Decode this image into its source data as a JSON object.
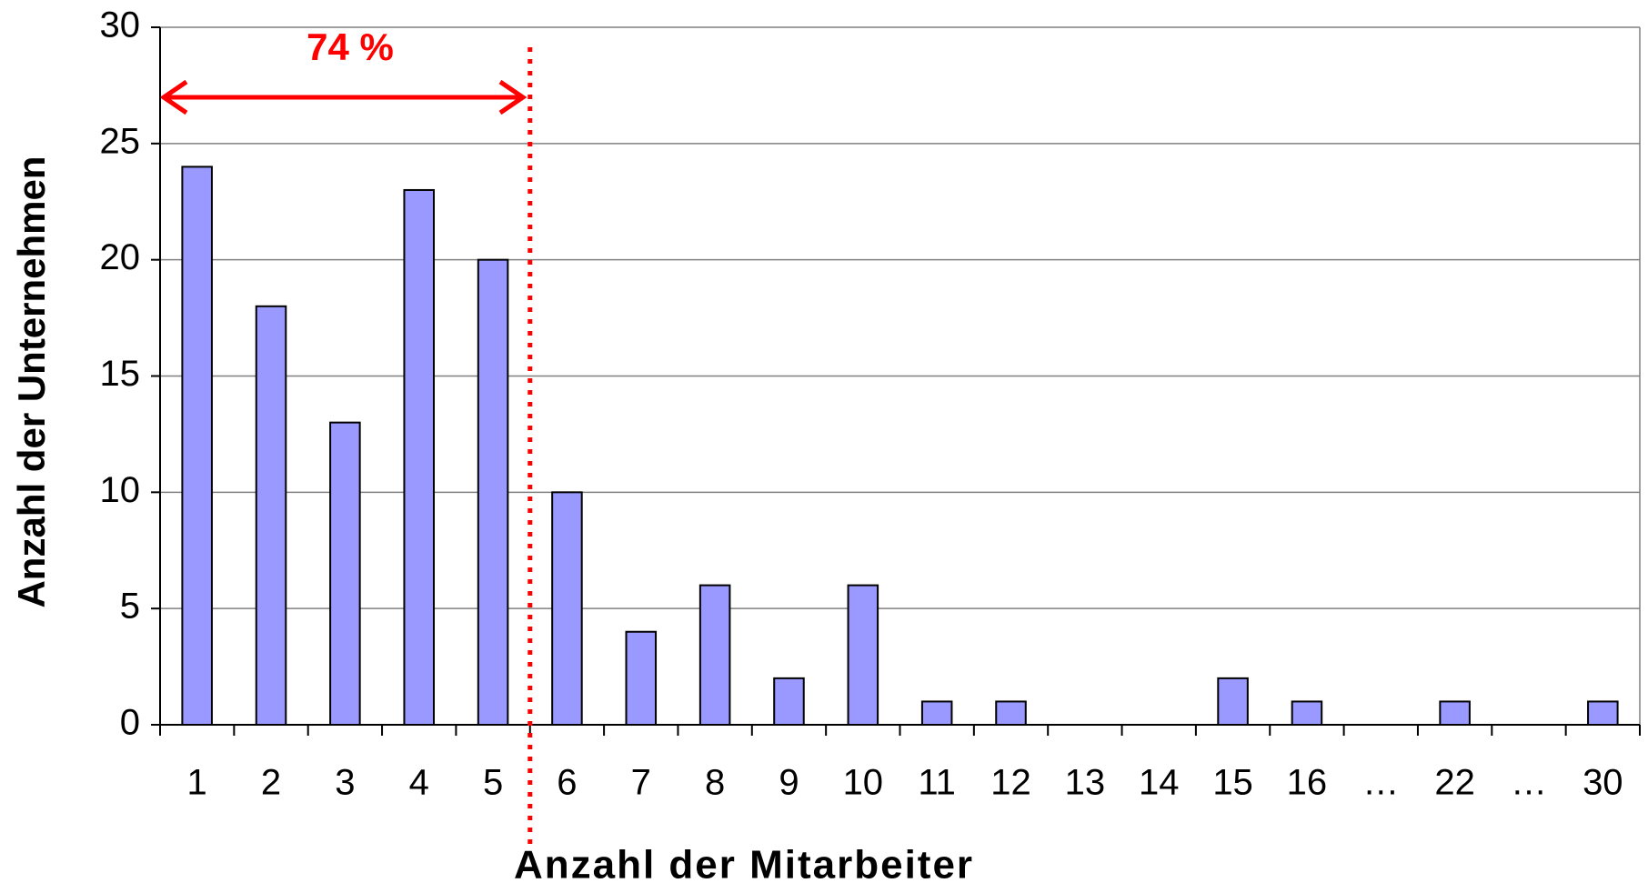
{
  "chart_data": {
    "type": "bar",
    "x_label": "Anzahl der Mitarbeiter",
    "y_label": "Anzahl der Unternehmen",
    "annotation": "74 %",
    "categories": [
      "1",
      "2",
      "3",
      "4",
      "5",
      "6",
      "7",
      "8",
      "9",
      "10",
      "11",
      "12",
      "13",
      "14",
      "15",
      "16",
      "…",
      "22",
      "…",
      "30"
    ],
    "values": [
      24,
      18,
      13,
      23,
      20,
      10,
      4,
      6,
      2,
      6,
      1,
      1,
      0,
      0,
      2,
      1,
      null,
      1,
      null,
      1
    ],
    "color": "#9999ff",
    "ylim": [
      0,
      30
    ],
    "yticks": [
      0,
      5,
      10,
      15,
      20,
      25,
      30
    ],
    "grid": true
  }
}
